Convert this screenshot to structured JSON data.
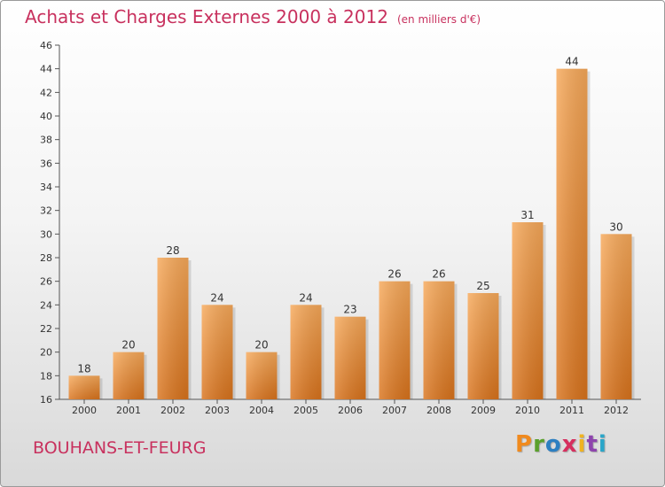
{
  "header": {
    "title": "Achats et Charges Externes 2000 à 2012",
    "unit": "(en milliers d'€)"
  },
  "footer": {
    "commune": "BOUHANS-ET-FEURG",
    "logo": {
      "letters": [
        "P",
        "r",
        "o",
        "x",
        "i",
        "t",
        "i"
      ],
      "colors": [
        "#f08a1e",
        "#5aa02c",
        "#2d7fc1",
        "#d62f5e",
        "#f0b320",
        "#8e44ad",
        "#2aa6c9"
      ]
    }
  },
  "colors": {
    "bar_top": "#f7a95a",
    "bar_bottom": "#d9731c",
    "title": "#c8315e"
  },
  "chart_data": {
    "type": "bar",
    "title": "Achats et Charges Externes 2000 à 2012",
    "xlabel": "",
    "ylabel": "",
    "categories": [
      "2000",
      "2001",
      "2002",
      "2003",
      "2004",
      "2005",
      "2006",
      "2007",
      "2008",
      "2009",
      "2010",
      "2011",
      "2012"
    ],
    "values": [
      18,
      20,
      28,
      24,
      20,
      24,
      23,
      26,
      26,
      25,
      31,
      44,
      30
    ],
    "ylim": [
      16,
      46
    ],
    "yticks": [
      16,
      18,
      20,
      22,
      24,
      26,
      28,
      30,
      32,
      34,
      36,
      38,
      40,
      42,
      44,
      46
    ],
    "grid": false,
    "legend": "none"
  }
}
